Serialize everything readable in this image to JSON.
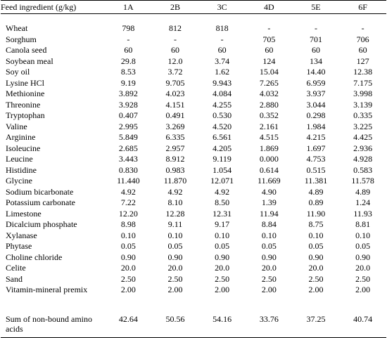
{
  "table": {
    "headers": [
      "Feed ingredient (g/kg)",
      "1A",
      "2B",
      "3C",
      "4D",
      "5E",
      "6F"
    ],
    "rows": [
      [
        "Wheat",
        "798",
        "812",
        "818",
        "-",
        "-",
        "-"
      ],
      [
        "Sorghum",
        "-",
        "-",
        "-",
        "705",
        "701",
        "706"
      ],
      [
        "Canola seed",
        "60",
        "60",
        "60",
        "60",
        "60",
        "60"
      ],
      [
        "Soybean meal",
        "29.8",
        "12.0",
        "3.74",
        "124",
        "134",
        "127"
      ],
      [
        "Soy oil",
        "8.53",
        "3.72",
        "1.62",
        "15.04",
        "14.40",
        "12.38"
      ],
      [
        "Lysine HCl",
        "9.19",
        "9.705",
        "9.943",
        "7.265",
        "6.959",
        "7.175"
      ],
      [
        "Methionine",
        "3.892",
        "4.023",
        "4.084",
        "4.032",
        "3.937",
        "3.998"
      ],
      [
        "Threonine",
        "3.928",
        "4.151",
        "4.255",
        "2.880",
        "3.044",
        "3.139"
      ],
      [
        "Tryptophan",
        "0.407",
        "0.491",
        "0.530",
        "0.352",
        "0.298",
        "0.335"
      ],
      [
        "Valine",
        "2.995",
        "3.269",
        "4.520",
        "2.161",
        "1.984",
        "3.225"
      ],
      [
        "Arginine",
        "5.849",
        "6.335",
        "6.561",
        "4.515",
        "4.215",
        "4.425"
      ],
      [
        "Isoleucine",
        "2.685",
        "2.957",
        "4.205",
        "1.869",
        "1.697",
        "2.936"
      ],
      [
        "Leucine",
        "3.443",
        "8.912",
        "9.119",
        "0.000",
        "4.753",
        "4.928"
      ],
      [
        "Histidine",
        "0.830",
        "0.983",
        "1.054",
        "0.614",
        "0.515",
        "0.583"
      ],
      [
        "Glycine",
        "11.440",
        "11.870",
        "12.071",
        "11.669",
        "11.381",
        "11.578"
      ],
      [
        "Sodium bicarbonate",
        "4.92",
        "4.92",
        "4.92",
        "4.90",
        "4.89",
        "4.89"
      ],
      [
        "Potassium carbonate",
        "7.22",
        "8.10",
        "8.50",
        "1.39",
        "0.89",
        "1.24"
      ],
      [
        "Limestone",
        "12.20",
        "12.28",
        "12.31",
        "11.94",
        "11.90",
        "11.93"
      ],
      [
        "Dicalcium phosphate",
        "8.98",
        "9.11",
        "9.17",
        "8.84",
        "8.75",
        "8.81"
      ],
      [
        "Xylanase",
        "0.10",
        "0.10",
        "0.10",
        "0.10",
        "0.10",
        "0.10"
      ],
      [
        "Phytase",
        "0.05",
        "0.05",
        "0.05",
        "0.05",
        "0.05",
        "0.05"
      ],
      [
        "Choline chloride",
        "0.90",
        "0.90",
        "0.90",
        "0.90",
        "0.90",
        "0.90"
      ],
      [
        "Celite",
        "20.0",
        "20.0",
        "20.0",
        "20.0",
        "20.0",
        "20.0"
      ],
      [
        "Sand",
        "2.50",
        "2.50",
        "2.50",
        "2.50",
        "2.50",
        "2.50"
      ]
    ],
    "premix_row": [
      "Vitamin-mineral premix",
      "2.00",
      "2.00",
      "2.00",
      "2.00",
      "2.00",
      "2.00"
    ],
    "sum_row": [
      "Sum of non-bound amino acids",
      "42.64",
      "50.56",
      "54.16",
      "33.76",
      "37.25",
      "40.74"
    ]
  }
}
